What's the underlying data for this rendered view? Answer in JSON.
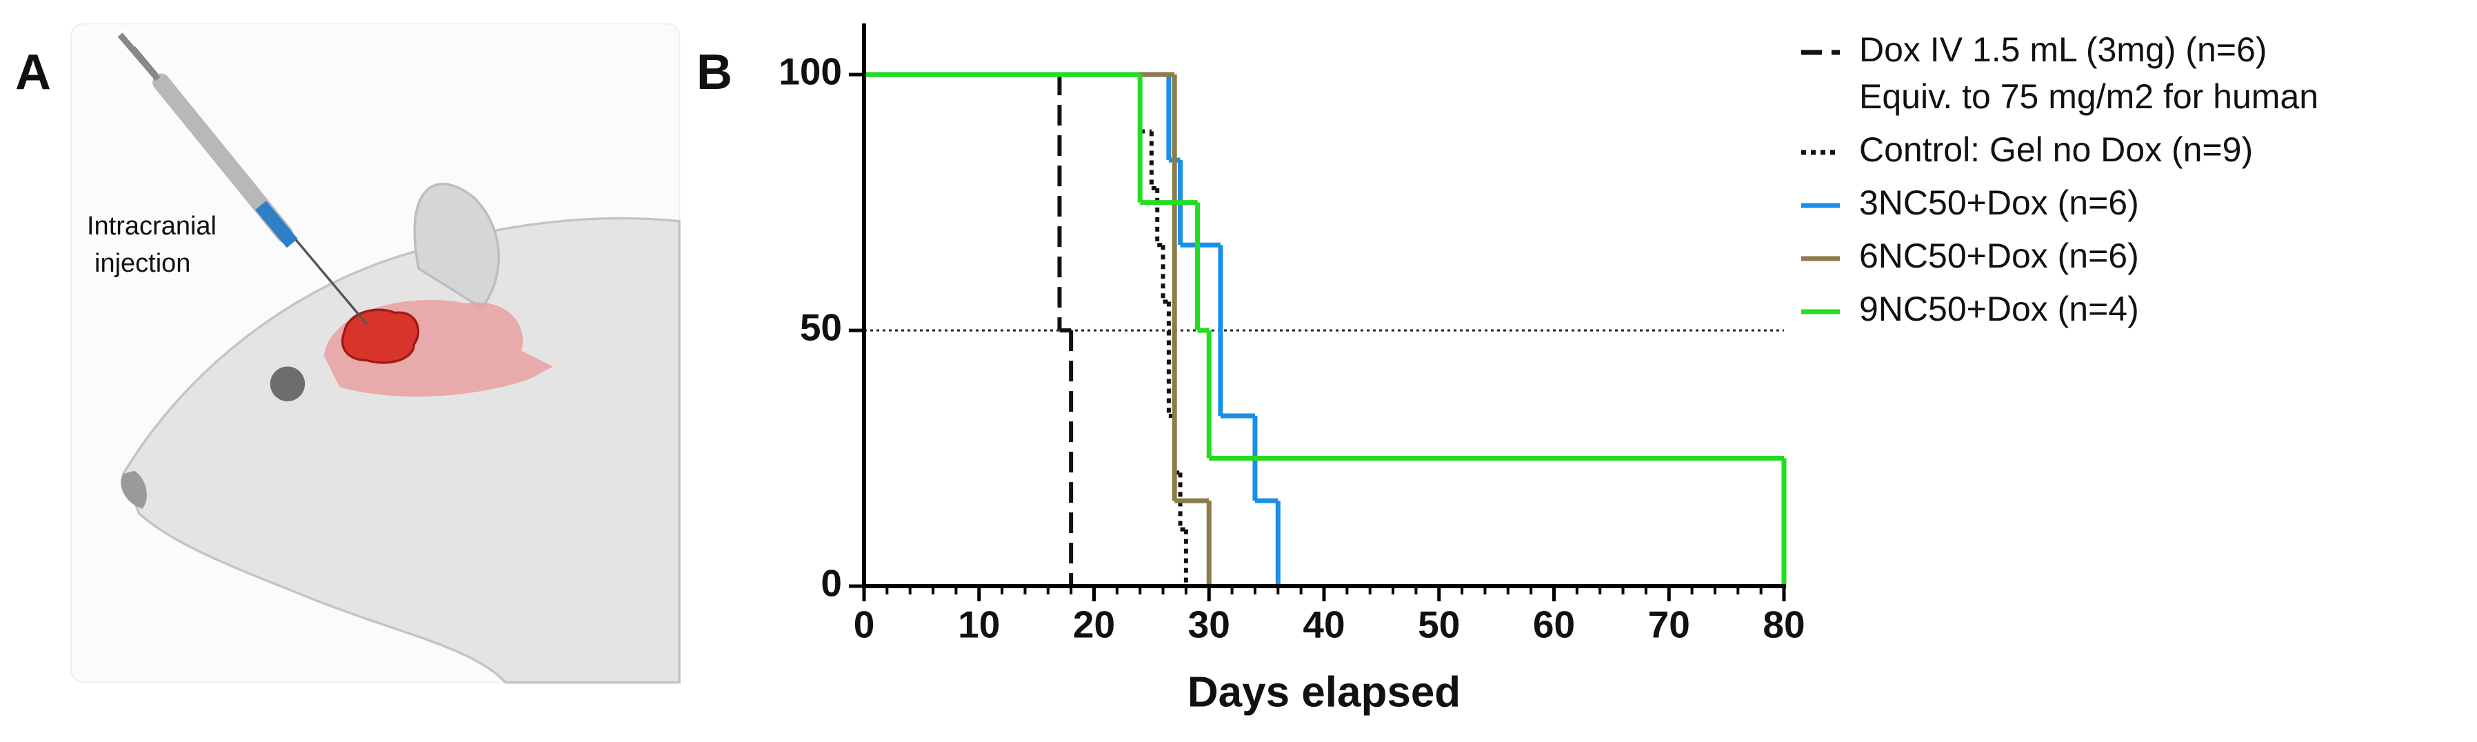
{
  "panel_labels": [
    "A",
    "B"
  ],
  "illustration_label": [
    "Intracranial",
    "injection"
  ],
  "chart_data": {
    "type": "survival-step",
    "xlabel": "Days elapsed",
    "xlim": [
      0,
      80
    ],
    "xticks": [
      0,
      10,
      20,
      30,
      40,
      50,
      60,
      70,
      80
    ],
    "xminor_step": 2,
    "ylim": [
      0,
      110
    ],
    "yticks": [
      0,
      50,
      100
    ],
    "reference_line": 50,
    "series": [
      {
        "name": "Dox IV 1.5 mL (3mg) (n=6)",
        "legend_note": "Equiv. to 75 mg/m2 for human",
        "color": "#111111",
        "line_style": "dashed",
        "x": [
          0,
          17,
          18
        ],
        "values": [
          100,
          50,
          0
        ]
      },
      {
        "name": "Control: Gel no Dox  (n=9)",
        "color": "#111111",
        "line_style": "dotted",
        "x": [
          0,
          24,
          25,
          25.5,
          26,
          26.5,
          27,
          27.5,
          28
        ],
        "values": [
          100,
          88.9,
          77.8,
          66.7,
          55.6,
          33.3,
          22.2,
          11.1,
          0
        ]
      },
      {
        "name": "3NC50+Dox (n=6)",
        "color": "#1a8fe8",
        "line_style": "solid",
        "x": [
          0,
          26.5,
          27.5,
          31,
          34,
          36
        ],
        "values": [
          100,
          83.3,
          66.7,
          33.3,
          16.7,
          0
        ]
      },
      {
        "name": "6NC50+Dox (n=6)",
        "color": "#8b7d4a",
        "line_style": "solid",
        "x": [
          0,
          27,
          30
        ],
        "values": [
          100,
          16.7,
          0
        ]
      },
      {
        "name": "9NC50+Dox (n=4)",
        "color": "#22dd22",
        "line_style": "solid",
        "x": [
          0,
          24,
          29,
          30,
          80
        ],
        "values": [
          100,
          75,
          50,
          25,
          0
        ]
      }
    ]
  }
}
